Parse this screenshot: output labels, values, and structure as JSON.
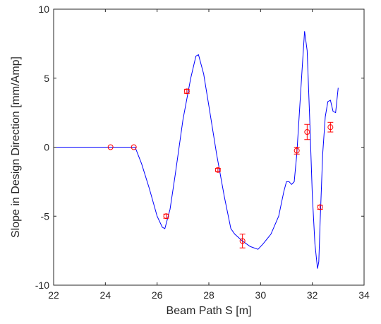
{
  "chart_data": {
    "type": "line",
    "xlabel": "Beam Path S [m]",
    "ylabel": "Slope in Design Direction [mm/Amp]",
    "xlim": [
      22,
      34
    ],
    "ylim": [
      -10,
      10
    ],
    "xticks": [
      22,
      24,
      26,
      28,
      30,
      32,
      34
    ],
    "yticks": [
      -10,
      -5,
      0,
      5,
      10
    ],
    "xtick_labels": [
      "22",
      "24",
      "26",
      "28",
      "30",
      "32",
      "34"
    ],
    "ytick_labels": [
      "-10",
      "-5",
      "0",
      "5",
      "10"
    ],
    "grid": false,
    "series": [
      {
        "style": "line",
        "color": "#0000ff",
        "x": [
          22.0,
          25.15,
          25.4,
          25.7,
          26.0,
          26.2,
          26.3,
          26.5,
          26.7,
          27.0,
          27.3,
          27.5,
          27.6,
          27.8,
          28.0,
          28.3,
          28.6,
          28.85,
          29.0,
          29.3,
          29.6,
          29.9,
          30.1,
          30.4,
          30.7,
          30.9,
          31.0,
          31.1,
          31.2,
          31.3,
          31.4,
          31.5,
          31.6,
          31.7,
          31.8,
          31.9,
          32.0,
          32.1,
          32.2,
          32.25,
          32.3,
          32.4,
          32.5,
          32.6,
          32.7,
          32.8,
          32.9,
          33.0
        ],
        "y": [
          0.0,
          0.0,
          -1.2,
          -3.0,
          -5.0,
          -5.8,
          -5.9,
          -4.5,
          -2.0,
          2.0,
          5.0,
          6.6,
          6.7,
          5.3,
          3.0,
          -0.5,
          -3.6,
          -5.9,
          -6.3,
          -6.8,
          -7.2,
          -7.4,
          -7.0,
          -6.3,
          -5.0,
          -3.2,
          -2.5,
          -2.5,
          -2.7,
          -2.5,
          -0.5,
          2.5,
          5.5,
          8.4,
          7.0,
          2.0,
          -3.5,
          -7.0,
          -8.8,
          -8.3,
          -5.5,
          -0.5,
          2.2,
          3.3,
          3.4,
          2.6,
          2.5,
          4.3
        ]
      },
      {
        "style": "errorbar",
        "color": "#ff0000",
        "x": [
          24.2,
          25.1,
          26.35,
          27.15,
          28.35,
          29.3,
          31.4,
          31.8,
          32.3,
          32.7
        ],
        "y": [
          0.0,
          0.0,
          -5.0,
          4.05,
          -1.65,
          -6.8,
          -0.25,
          1.1,
          -4.35,
          1.45
        ],
        "err": [
          0.0,
          0.0,
          0.15,
          0.15,
          0.12,
          0.5,
          0.25,
          0.55,
          0.15,
          0.35
        ]
      }
    ]
  }
}
